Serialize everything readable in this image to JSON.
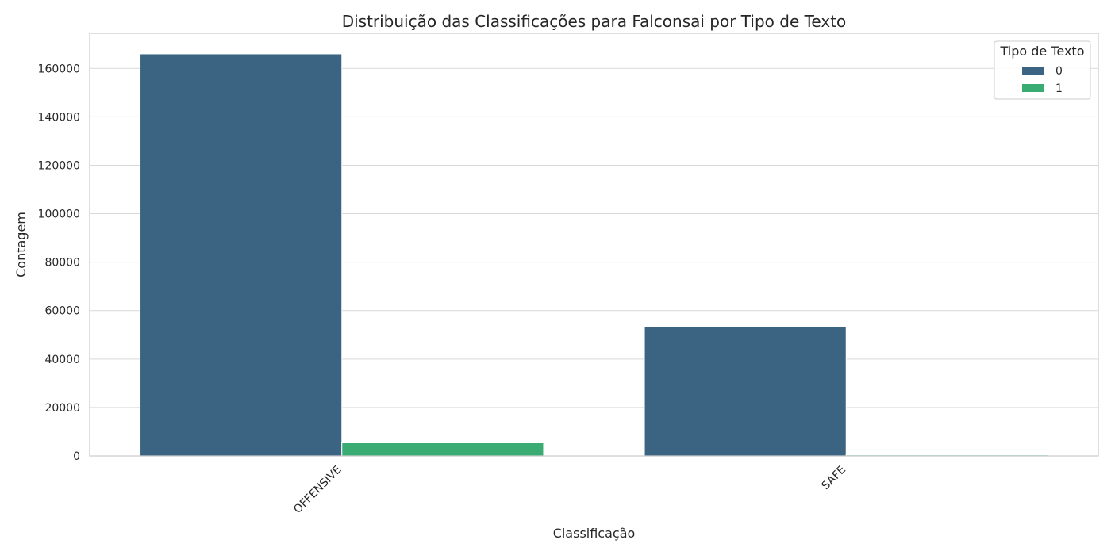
{
  "chart_data": {
    "type": "bar",
    "title": "Distribuição das Classificações para Falconsai por Tipo de Texto",
    "xlabel": "Classificação",
    "ylabel": "Contagem",
    "categories": [
      "OFFENSIVE",
      "SAFE"
    ],
    "series": [
      {
        "name": "0",
        "values": [
          166000,
          53200
        ],
        "color": "#3b6482"
      },
      {
        "name": "1",
        "values": [
          5400,
          400
        ],
        "color": "#3aab73"
      }
    ],
    "ylim": [
      0,
      174500
    ],
    "yticks": [
      0,
      20000,
      40000,
      60000,
      80000,
      100000,
      120000,
      140000,
      160000
    ],
    "grid": true,
    "legend": {
      "title": "Tipo de Texto",
      "placement": "top-right"
    }
  }
}
